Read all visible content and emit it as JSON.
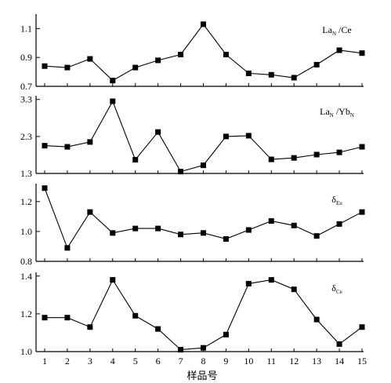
{
  "chart_data": {
    "type": "line",
    "xlabel": "样品号",
    "x": [
      1,
      2,
      3,
      4,
      5,
      6,
      7,
      8,
      9,
      10,
      11,
      12,
      13,
      14,
      15
    ],
    "x_ticks": [
      "1",
      "2",
      "3",
      "4",
      "5",
      "6",
      "7",
      "8",
      "9",
      "10",
      "11",
      "12",
      "13",
      "14",
      "15"
    ],
    "panels": [
      {
        "label_main": "La",
        "label_sub1": "N",
        "label_mid": "/Ce",
        "label_sub2": "",
        "ylim": [
          0.7,
          1.2
        ],
        "yticks": [
          0.7,
          0.9,
          1.1
        ],
        "ytick_labels": [
          "0.7",
          "0.9",
          "1.1"
        ],
        "values": [
          0.84,
          0.83,
          0.89,
          0.74,
          0.83,
          0.88,
          0.92,
          1.13,
          0.92,
          0.79,
          0.78,
          0.76,
          0.85,
          0.95,
          0.93
        ]
      },
      {
        "label_main": "La",
        "label_sub1": "N",
        "label_mid": "/Yb",
        "label_sub2": "N",
        "ylim": [
          1.3,
          3.4
        ],
        "yticks": [
          1.3,
          2.3,
          3.3
        ],
        "ytick_labels": [
          "1.3",
          "2.3",
          "3.3"
        ],
        "values": [
          2.05,
          2.02,
          2.15,
          3.25,
          1.67,
          2.42,
          1.35,
          1.52,
          2.3,
          2.32,
          1.68,
          1.72,
          1.81,
          1.87,
          2.02
        ]
      },
      {
        "label_main": "δ",
        "label_sub1": "Eu",
        "label_mid": "",
        "label_sub2": "",
        "ylim": [
          0.8,
          1.32
        ],
        "yticks": [
          0.8,
          1.0,
          1.2
        ],
        "ytick_labels": [
          "0.8",
          "1.0",
          "1.2"
        ],
        "values": [
          1.29,
          0.89,
          1.13,
          0.99,
          1.02,
          1.02,
          0.98,
          0.99,
          0.95,
          1.01,
          1.07,
          1.04,
          0.97,
          1.05,
          1.13
        ]
      },
      {
        "label_main": "δ",
        "label_sub1": "Ce",
        "label_mid": "",
        "label_sub2": "",
        "ylim": [
          1.0,
          1.42
        ],
        "yticks": [
          1.0,
          1.2,
          1.4
        ],
        "ytick_labels": [
          "1.0",
          "1.2",
          "1.4"
        ],
        "values": [
          1.18,
          1.18,
          1.13,
          1.38,
          1.19,
          1.12,
          1.01,
          1.02,
          1.09,
          1.36,
          1.38,
          1.33,
          1.17,
          1.04,
          1.13
        ]
      }
    ]
  }
}
